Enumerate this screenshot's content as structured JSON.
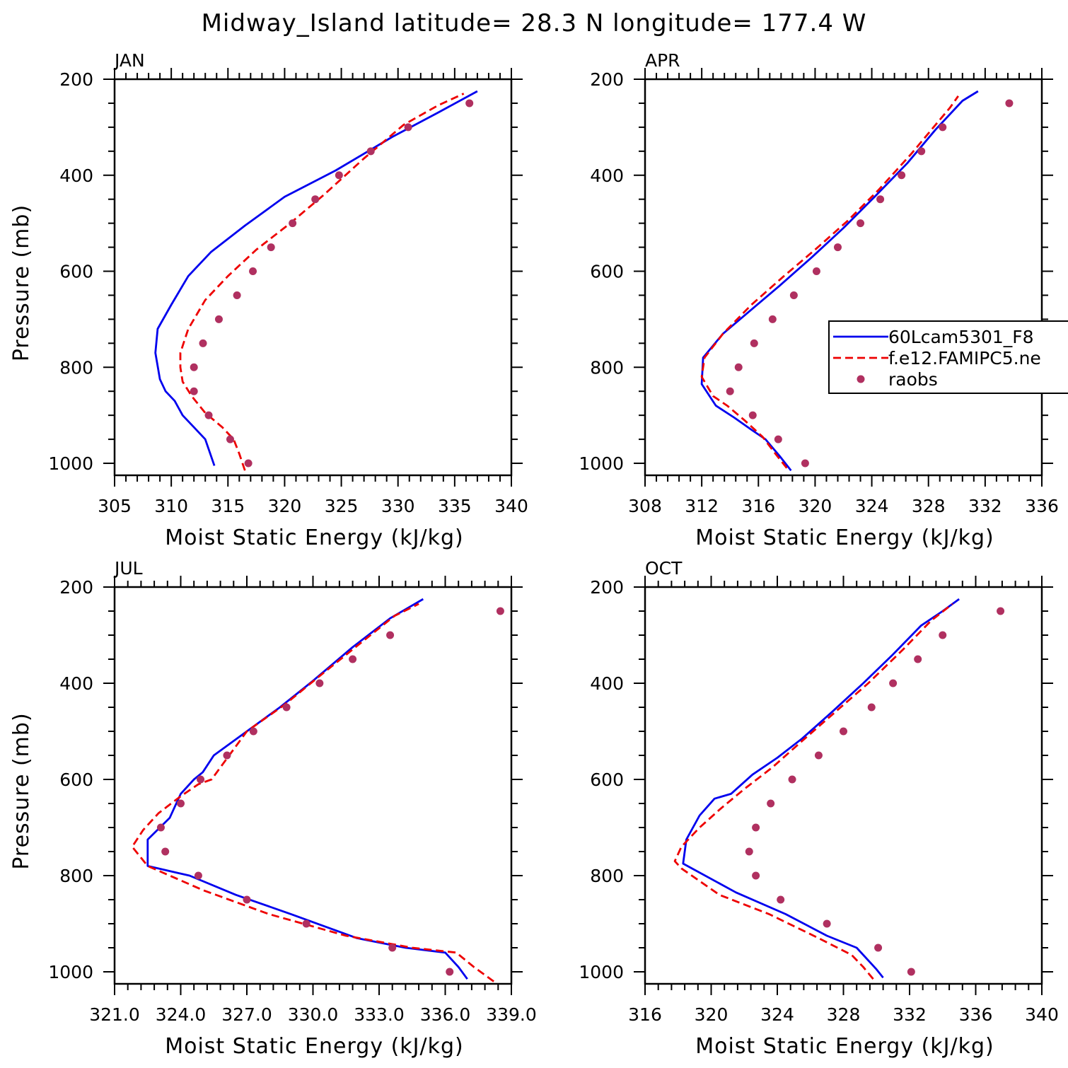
{
  "chart_data": {
    "title": "Midway_Island  latitude= 28.3 N longitude= 177.4 W",
    "type": "line",
    "legend": {
      "placement": "right",
      "entries": [
        {
          "name": "60Lcam5301_F8",
          "style": "solid",
          "color": "#0000ee"
        },
        {
          "name": "f.e12.FAMIPC5.ne",
          "style": "dashed",
          "color": "#ee0000"
        },
        {
          "name": "raobs",
          "style": "markers",
          "color": "#b03060"
        }
      ]
    },
    "panels": [
      {
        "label": "JAN",
        "xlabel": "Moist Static Energy (kJ/kg)",
        "ylabel": "Pressure (mb)",
        "xlim": [
          305,
          340
        ],
        "xticks": [
          305,
          310,
          315,
          320,
          325,
          330,
          335,
          340
        ],
        "xtick_labels": [
          "305",
          "310",
          "315",
          "320",
          "325",
          "330",
          "335",
          "340"
        ],
        "ylim": [
          200,
          1025
        ],
        "yticks": [
          200,
          400,
          600,
          800,
          1000
        ],
        "yticks_labels": [
          "200",
          "400",
          "600",
          "800",
          "1000"
        ],
        "series": [
          {
            "name": "60Lcam5301_F8",
            "x": [
              313.8,
              313.0,
              312.0,
              311.0,
              310.3,
              309.5,
              309.0,
              308.6,
              308.8,
              310.0,
              311.5,
              313.5,
              316.5,
              320.0,
              324.5,
              329.5,
              333.5,
              337.0
            ],
            "y": [
              1005,
              950,
              925,
              900,
              870,
              850,
              825,
              770,
              720,
              670,
              610,
              560,
              505,
              445,
              390,
              320,
              270,
              225
            ]
          },
          {
            "name": "f.e12.FAMIPC5.ne",
            "x": [
              316.5,
              316.0,
              315.5,
              314.5,
              313.0,
              311.8,
              311.0,
              310.8,
              310.8,
              311.5,
              313.0,
              315.0,
              317.5,
              320.5,
              323.5,
              327.0,
              330.5,
              333.5,
              335.8
            ],
            "y": [
              1015,
              980,
              950,
              925,
              895,
              860,
              830,
              800,
              770,
              720,
              660,
              610,
              555,
              500,
              440,
              365,
              295,
              255,
              230
            ]
          },
          {
            "name": "raobs",
            "x": [
              316.8,
              315.2,
              313.3,
              312.0,
              312.0,
              312.8,
              314.2,
              315.8,
              317.2,
              318.8,
              320.7,
              322.7,
              324.8,
              327.6,
              330.9,
              336.3
            ],
            "y": [
              1000,
              950,
              900,
              850,
              800,
              750,
              700,
              650,
              600,
              550,
              500,
              450,
              400,
              350,
              300,
              250
            ]
          }
        ]
      },
      {
        "label": "APR",
        "xlabel": "Moist Static Energy (kJ/kg)",
        "ylabel": "",
        "xlim": [
          308,
          336
        ],
        "xticks": [
          308,
          312,
          316,
          320,
          324,
          328,
          332,
          336
        ],
        "xtick_labels": [
          "308",
          "312",
          "316",
          "320",
          "324",
          "328",
          "332",
          "336"
        ],
        "ylim": [
          200,
          1025
        ],
        "yticks": [
          200,
          400,
          600,
          800,
          1000
        ],
        "yticks_labels": [
          "200",
          "400",
          "600",
          "800",
          "1000"
        ],
        "series": [
          {
            "name": "60Lcam5301_F8",
            "x": [
              318.3,
              317.5,
              316.5,
              315.5,
              314.3,
              313.0,
              312.0,
              312.1,
              313.5,
              315.5,
              317.5,
              319.8,
              322.0,
              324.2,
              326.5,
              328.5,
              330.4,
              331.5
            ],
            "y": [
              1015,
              985,
              950,
              930,
              905,
              880,
              835,
              780,
              730,
              680,
              630,
              570,
              510,
              445,
              375,
              305,
              245,
              225
            ]
          },
          {
            "name": "f.e12.FAMIPC5.ne",
            "x": [
              318.0,
              317.2,
              316.3,
              315.0,
              313.8,
              312.8,
              312.0,
              312.2,
              313.5,
              315.5,
              317.8,
              320.0,
              322.3,
              324.5,
              326.8,
              328.5,
              329.5,
              330.1
            ],
            "y": [
              1010,
              980,
              945,
              910,
              880,
              860,
              820,
              780,
              730,
              670,
              610,
              555,
              495,
              430,
              355,
              295,
              260,
              235
            ]
          },
          {
            "name": "raobs",
            "x": [
              319.3,
              317.4,
              315.6,
              314.0,
              314.6,
              315.7,
              317.0,
              318.5,
              320.1,
              321.6,
              323.2,
              324.6,
              326.1,
              327.5,
              329.0,
              333.7
            ],
            "y": [
              1000,
              950,
              900,
              850,
              800,
              750,
              700,
              650,
              600,
              550,
              500,
              450,
              400,
              350,
              300,
              250
            ]
          }
        ]
      },
      {
        "label": "JUL",
        "xlabel": "Moist Static Energy (kJ/kg)",
        "ylabel": "Pressure (mb)",
        "xlim": [
          321,
          339
        ],
        "xticks": [
          321,
          324,
          327,
          330,
          333,
          336,
          339
        ],
        "xtick_labels": [
          "321.0",
          "324.0",
          "327.0",
          "330.0",
          "333.0",
          "336.0",
          "339.0"
        ],
        "ylim": [
          200,
          1025
        ],
        "yticks": [
          200,
          400,
          600,
          800,
          1000
        ],
        "yticks_labels": [
          "200",
          "400",
          "600",
          "800",
          "1000"
        ],
        "series": [
          {
            "name": "60Lcam5301_F8",
            "x": [
              337.0,
              336.6,
              336.0,
              334.2,
              332.0,
              329.0,
              326.5,
              324.4,
              322.5,
              322.5,
              323.5,
              324.0,
              324.6,
              325.0,
              325.5,
              327.0,
              328.5,
              330.0,
              331.8,
              333.5,
              335.0
            ],
            "y": [
              1015,
              990,
              960,
              950,
              930,
              880,
              840,
              800,
              780,
              725,
              680,
              630,
              600,
              585,
              550,
              500,
              450,
              395,
              325,
              265,
              225
            ]
          },
          {
            "name": "f.e12.FAMIPC5.ne",
            "x": [
              338.2,
              337.3,
              336.5,
              334.5,
              331.5,
              328.0,
              325.0,
              322.5,
              321.8,
              322.3,
              323.0,
              324.0,
              324.8,
              325.4,
              327.0,
              328.7,
              330.3,
              332.2,
              333.7,
              334.8
            ],
            "y": [
              1020,
              990,
              960,
              950,
              925,
              880,
              830,
              780,
              740,
              705,
              670,
              635,
              610,
              600,
              500,
              445,
              385,
              315,
              260,
              235
            ]
          },
          {
            "name": "raobs",
            "x": [
              336.2,
              333.6,
              329.7,
              327.0,
              324.8,
              323.3,
              323.1,
              324.0,
              324.9,
              326.1,
              327.3,
              328.8,
              330.3,
              331.8,
              333.5,
              338.5
            ],
            "y": [
              1000,
              950,
              900,
              850,
              800,
              750,
              700,
              650,
              600,
              550,
              500,
              450,
              400,
              350,
              300,
              250
            ]
          }
        ]
      },
      {
        "label": "OCT",
        "xlabel": "Moist Static Energy (kJ/kg)",
        "ylabel": "",
        "xlim": [
          316,
          340
        ],
        "xticks": [
          316,
          320,
          324,
          328,
          332,
          336,
          340
        ],
        "xtick_labels": [
          "316",
          "320",
          "324",
          "328",
          "332",
          "336",
          "340"
        ],
        "ylim": [
          200,
          1025
        ],
        "yticks": [
          200,
          400,
          600,
          800,
          1000
        ],
        "yticks_labels": [
          "200",
          "400",
          "600",
          "800",
          "1000"
        ],
        "series": [
          {
            "name": "60Lcam5301_F8",
            "x": [
              330.4,
              330.0,
              328.8,
              327.0,
              324.5,
              321.5,
              318.3,
              318.5,
              319.3,
              320.2,
              321.2,
              322.5,
              324.0,
              325.5,
              327.3,
              329.2,
              331.0,
              332.7,
              334.0,
              335.0
            ],
            "y": [
              1012,
              995,
              950,
              925,
              880,
              835,
              775,
              725,
              675,
              640,
              630,
              590,
              555,
              515,
              460,
              400,
              340,
              280,
              250,
              225
            ]
          },
          {
            "name": "f.e12.FAMIPC5.ne",
            "x": [
              329.8,
              329.2,
              328.5,
              326.5,
              323.5,
              320.5,
              318.2,
              317.8,
              318.2,
              319.3,
              320.6,
              322.0,
              323.7,
              325.5,
              327.5,
              329.5,
              331.6,
              333.3,
              334.6
            ],
            "y": [
              1015,
              990,
              965,
              930,
              880,
              840,
              785,
              770,
              740,
              700,
              660,
              620,
              575,
              520,
              460,
              400,
              330,
              270,
              235
            ]
          },
          {
            "name": "raobs",
            "x": [
              332.1,
              330.1,
              327.0,
              324.2,
              322.7,
              322.3,
              322.7,
              323.6,
              324.9,
              326.5,
              328.0,
              329.7,
              331.0,
              332.5,
              334.0,
              337.5
            ],
            "y": [
              1000,
              950,
              900,
              850,
              800,
              750,
              700,
              650,
              600,
              550,
              500,
              450,
              400,
              350,
              300,
              250
            ]
          }
        ]
      }
    ]
  }
}
